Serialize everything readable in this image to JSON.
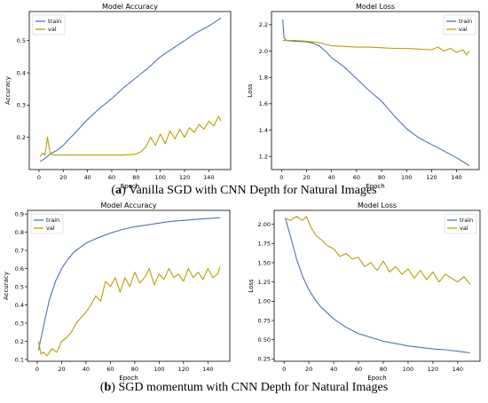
{
  "captions": [
    {
      "tag": "a",
      "text": " Vanilla SGD with CNN Depth for Natural Images"
    },
    {
      "tag": "b",
      "text": " SGD momentum with CNN Depth for Natural Images"
    }
  ],
  "colors": {
    "train": "#4c72b0",
    "val": "#b8a000",
    "axis": "#000000"
  },
  "chart_data": [
    {
      "type": "line",
      "title": "Model Accuracy",
      "xlabel": "Epoch",
      "ylabel": "Accuracy",
      "xlim": [
        -8,
        158
      ],
      "ylim": [
        0.1,
        0.59
      ],
      "xticks": [
        0,
        20,
        40,
        60,
        80,
        100,
        120,
        140
      ],
      "yticks": [
        0.2,
        0.3,
        0.4,
        0.5
      ],
      "ytick_labels": [
        "0.2",
        "0.3",
        "0.4",
        "0.5"
      ],
      "legend": "top-left",
      "series": [
        {
          "name": "train",
          "color": "#4c72b0",
          "x": [
            1,
            5,
            10,
            15,
            20,
            25,
            30,
            40,
            50,
            60,
            70,
            80,
            90,
            100,
            110,
            120,
            130,
            140,
            150
          ],
          "y": [
            0.125,
            0.135,
            0.15,
            0.16,
            0.175,
            0.195,
            0.215,
            0.255,
            0.29,
            0.32,
            0.355,
            0.385,
            0.415,
            0.45,
            0.475,
            0.5,
            0.525,
            0.545,
            0.57
          ]
        },
        {
          "name": "val",
          "color": "#b8a000",
          "x": [
            1,
            3,
            5,
            7,
            9,
            11,
            15,
            20,
            30,
            40,
            50,
            60,
            70,
            80,
            84,
            88,
            92,
            96,
            100,
            104,
            108,
            112,
            116,
            120,
            124,
            128,
            132,
            136,
            140,
            144,
            148,
            150
          ],
          "y": [
            0.14,
            0.15,
            0.145,
            0.2,
            0.155,
            0.145,
            0.145,
            0.145,
            0.145,
            0.145,
            0.145,
            0.145,
            0.145,
            0.148,
            0.155,
            0.17,
            0.2,
            0.175,
            0.21,
            0.18,
            0.22,
            0.195,
            0.225,
            0.2,
            0.23,
            0.215,
            0.24,
            0.225,
            0.25,
            0.235,
            0.265,
            0.25
          ]
        }
      ]
    },
    {
      "type": "line",
      "title": "Model Loss",
      "xlabel": "Epoch",
      "ylabel": "Loss",
      "xlim": [
        -8,
        158
      ],
      "ylim": [
        1.1,
        2.3
      ],
      "xticks": [
        0,
        20,
        40,
        60,
        80,
        100,
        120,
        140
      ],
      "yticks": [
        1.2,
        1.4,
        1.6,
        1.8,
        2.0,
        2.2
      ],
      "ytick_labels": [
        "1.2",
        "1.4",
        "1.6",
        "1.8",
        "2.0",
        "2.2"
      ],
      "legend": "top-right",
      "series": [
        {
          "name": "train",
          "color": "#4c72b0",
          "x": [
            1,
            2,
            4,
            10,
            20,
            25,
            30,
            35,
            40,
            50,
            60,
            70,
            80,
            90,
            100,
            110,
            120,
            130,
            140,
            150
          ],
          "y": [
            2.24,
            2.1,
            2.08,
            2.075,
            2.07,
            2.06,
            2.04,
            2.0,
            1.95,
            1.88,
            1.79,
            1.7,
            1.62,
            1.51,
            1.41,
            1.34,
            1.29,
            1.24,
            1.19,
            1.13
          ]
        },
        {
          "name": "val",
          "color": "#b8a000",
          "x": [
            1,
            10,
            20,
            30,
            40,
            50,
            60,
            70,
            80,
            90,
            100,
            110,
            120,
            125,
            130,
            135,
            140,
            145,
            148,
            150
          ],
          "y": [
            2.08,
            2.08,
            2.075,
            2.065,
            2.04,
            2.035,
            2.03,
            2.03,
            2.025,
            2.02,
            2.02,
            2.015,
            2.01,
            2.03,
            2.0,
            2.02,
            1.99,
            2.01,
            1.97,
            2.0
          ]
        }
      ]
    },
    {
      "type": "line",
      "title": "Model Accuracy",
      "xlabel": "Epoch",
      "ylabel": "Accuracy",
      "xlim": [
        -8,
        158
      ],
      "ylim": [
        0.09,
        0.92
      ],
      "xticks": [
        0,
        20,
        40,
        60,
        80,
        100,
        120,
        140
      ],
      "yticks": [
        0.1,
        0.2,
        0.3,
        0.4,
        0.5,
        0.6,
        0.7,
        0.8,
        0.9
      ],
      "ytick_labels": [
        "0.1",
        "0.2",
        "0.3",
        "0.4",
        "0.5",
        "0.6",
        "0.7",
        "0.8",
        "0.9"
      ],
      "legend": "top-left",
      "series": [
        {
          "name": "train",
          "color": "#4c72b0",
          "x": [
            1,
            5,
            10,
            15,
            20,
            25,
            30,
            40,
            50,
            60,
            70,
            80,
            90,
            100,
            110,
            120,
            130,
            140,
            150
          ],
          "y": [
            0.15,
            0.28,
            0.43,
            0.53,
            0.6,
            0.65,
            0.69,
            0.74,
            0.77,
            0.795,
            0.815,
            0.83,
            0.84,
            0.85,
            0.86,
            0.865,
            0.87,
            0.875,
            0.88
          ]
        },
        {
          "name": "val",
          "color": "#b8a000",
          "x": [
            1,
            3,
            5,
            8,
            12,
            16,
            20,
            24,
            28,
            32,
            36,
            40,
            44,
            48,
            52,
            56,
            60,
            64,
            68,
            72,
            76,
            80,
            84,
            88,
            92,
            96,
            100,
            104,
            108,
            112,
            116,
            120,
            124,
            128,
            132,
            136,
            140,
            144,
            148,
            150
          ],
          "y": [
            0.2,
            0.13,
            0.14,
            0.12,
            0.16,
            0.14,
            0.2,
            0.22,
            0.25,
            0.3,
            0.33,
            0.36,
            0.4,
            0.45,
            0.42,
            0.53,
            0.5,
            0.55,
            0.47,
            0.55,
            0.5,
            0.58,
            0.52,
            0.55,
            0.6,
            0.51,
            0.57,
            0.54,
            0.6,
            0.55,
            0.57,
            0.53,
            0.6,
            0.55,
            0.58,
            0.54,
            0.6,
            0.55,
            0.57,
            0.61
          ]
        }
      ]
    },
    {
      "type": "line",
      "title": "Model Loss",
      "xlabel": "Epoch",
      "ylabel": "Loss",
      "xlim": [
        -8,
        158
      ],
      "ylim": [
        0.22,
        2.18
      ],
      "xticks": [
        0,
        20,
        40,
        60,
        80,
        100,
        120,
        140
      ],
      "yticks": [
        0.25,
        0.5,
        0.75,
        1.0,
        1.25,
        1.5,
        1.75,
        2.0
      ],
      "ytick_labels": [
        "0.25",
        "0.50",
        "0.75",
        "1.00",
        "1.25",
        "1.50",
        "1.75",
        "2.00"
      ],
      "legend": "top-right",
      "series": [
        {
          "name": "train",
          "color": "#4c72b0",
          "x": [
            1,
            5,
            10,
            15,
            20,
            25,
            30,
            40,
            50,
            60,
            70,
            80,
            90,
            100,
            110,
            120,
            130,
            140,
            150
          ],
          "y": [
            2.08,
            1.85,
            1.55,
            1.32,
            1.15,
            1.02,
            0.92,
            0.77,
            0.66,
            0.58,
            0.53,
            0.48,
            0.45,
            0.42,
            0.4,
            0.38,
            0.37,
            0.35,
            0.33
          ]
        },
        {
          "name": "val",
          "color": "#b8a000",
          "x": [
            1,
            5,
            10,
            15,
            18,
            22,
            26,
            30,
            35,
            40,
            45,
            50,
            55,
            60,
            65,
            70,
            75,
            80,
            85,
            90,
            95,
            100,
            105,
            110,
            115,
            120,
            125,
            130,
            135,
            140,
            145,
            150
          ],
          "y": [
            2.08,
            2.05,
            2.1,
            2.05,
            2.1,
            1.95,
            1.85,
            1.8,
            1.72,
            1.68,
            1.58,
            1.62,
            1.55,
            1.57,
            1.45,
            1.5,
            1.4,
            1.52,
            1.38,
            1.45,
            1.35,
            1.42,
            1.3,
            1.4,
            1.28,
            1.38,
            1.25,
            1.35,
            1.3,
            1.25,
            1.32,
            1.22
          ]
        }
      ]
    }
  ]
}
